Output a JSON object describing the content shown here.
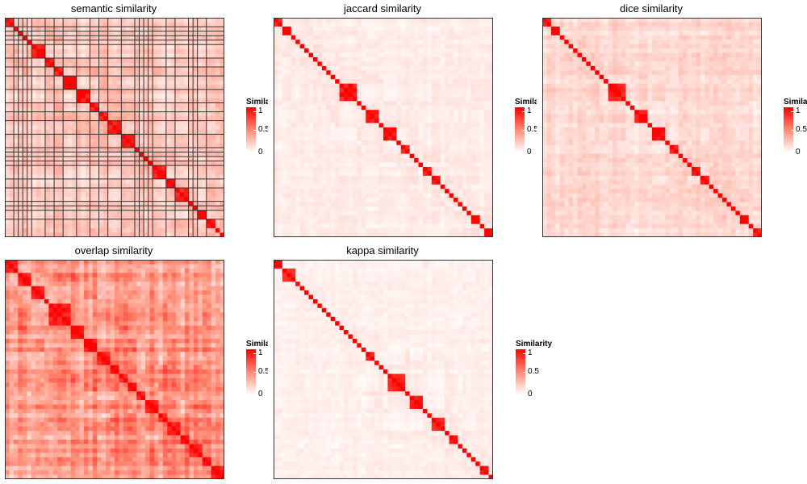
{
  "chart_data": [
    {
      "type": "heatmap",
      "title": "semantic similarity",
      "seed": 11,
      "n": 49,
      "blocks": [
        2,
        1,
        1,
        1,
        1,
        3,
        2,
        2,
        3,
        3,
        2,
        2,
        3,
        3,
        1,
        1,
        1,
        1,
        3,
        2,
        3,
        1,
        1,
        2,
        2
      ],
      "base": 0.16,
      "offdiag": 0.12,
      "borders": true
    },
    {
      "type": "heatmap",
      "title": "jaccard similarity",
      "seed": 23,
      "n": 50,
      "blocks": [
        2,
        2,
        1,
        1,
        1,
        1,
        1,
        1,
        1,
        1,
        1,
        1,
        1,
        4,
        1,
        1,
        3,
        1,
        3,
        1,
        2,
        1,
        1,
        1,
        2,
        2,
        1,
        1,
        1,
        1,
        1,
        1,
        1,
        2,
        1,
        2,
        1,
        1,
        2,
        2,
        1
      ],
      "base": 0.05,
      "offdiag": 0.06,
      "borders": false
    },
    {
      "type": "heatmap",
      "title": "dice similarity",
      "seed": 37,
      "n": 50,
      "blocks": [
        2,
        2,
        1,
        1,
        1,
        1,
        1,
        1,
        1,
        1,
        1,
        1,
        1,
        4,
        1,
        1,
        3,
        1,
        3,
        1,
        2,
        1,
        1,
        1,
        2,
        2,
        1,
        1,
        1,
        1,
        1,
        1,
        1,
        2,
        1,
        2,
        1,
        1,
        2,
        2,
        1
      ],
      "base": 0.12,
      "offdiag": 0.08,
      "borders": false
    },
    {
      "type": "heatmap",
      "title": "overlap similarity",
      "seed": 51,
      "n": 50,
      "blocks": [
        3,
        3,
        3,
        1,
        5,
        3,
        3,
        3,
        2,
        2,
        2,
        2,
        3,
        2,
        3,
        2,
        3,
        2,
        4,
        3,
        2,
        2
      ],
      "base": 0.36,
      "offdiag": 0.15,
      "borders": false
    },
    {
      "type": "heatmap",
      "title": "kappa similarity",
      "seed": 67,
      "n": 50,
      "blocks": [
        2,
        3,
        1,
        1,
        1,
        1,
        1,
        1,
        1,
        1,
        1,
        1,
        1,
        1,
        1,
        1,
        1,
        1,
        2,
        1,
        1,
        1,
        4,
        1,
        3,
        1,
        1,
        3,
        1,
        2,
        1,
        1,
        1,
        1,
        1,
        2,
        1,
        1,
        1
      ],
      "base": 0.04,
      "offdiag": 0.05,
      "borders": false
    }
  ],
  "legend": {
    "title": "Similarity",
    "ticks": [
      "1",
      "0.5",
      "0"
    ]
  },
  "colors": {
    "high": "#ff0000",
    "mid": "#ff8a74",
    "low": "#ffffff",
    "border": "#333333"
  }
}
